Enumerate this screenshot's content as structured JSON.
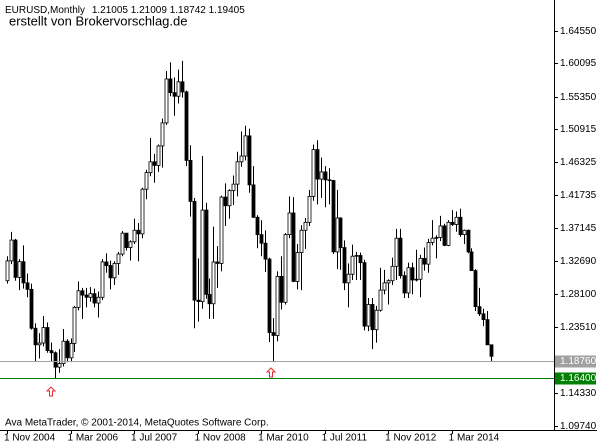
{
  "chart_data": {
    "type": "candlestick",
    "symbol": "EURUSD,Monthly",
    "watermark": "erstellt von Brokervorschlag.de",
    "copyright": "Ava MetaTrader, © 2001-2014, MetaQuotes Software Corp.",
    "categories": [
      "1 Nov 2004",
      null,
      null,
      null,
      null,
      null,
      null,
      null,
      null,
      null,
      null,
      null,
      null,
      null,
      null,
      null,
      "1 Mar 2006",
      null,
      null,
      null,
      null,
      null,
      null,
      null,
      null,
      null,
      null,
      null,
      null,
      null,
      null,
      null,
      "1 Jul 2007",
      null,
      null,
      null,
      null,
      null,
      null,
      null,
      null,
      null,
      null,
      null,
      null,
      null,
      null,
      null,
      "1 Nov 2008",
      null,
      null,
      null,
      null,
      null,
      null,
      null,
      null,
      null,
      null,
      null,
      null,
      null,
      null,
      null,
      "1 Mar 2010",
      null,
      null,
      null,
      null,
      null,
      null,
      null,
      null,
      null,
      null,
      null,
      null,
      null,
      null,
      null,
      "1 Jul 2011",
      null,
      null,
      null,
      null,
      null,
      null,
      null,
      null,
      null,
      null,
      null,
      null,
      null,
      null,
      null,
      "1 Nov 2012",
      null,
      null,
      null,
      null,
      null,
      null,
      null,
      null,
      null,
      null,
      null,
      null,
      null,
      null,
      null,
      "1 Mar 2014",
      null,
      null,
      null,
      null,
      null,
      null,
      null,
      null,
      null,
      null
    ],
    "open": [
      1.299,
      1.3265,
      1.3554,
      1.3036,
      1.3254,
      1.296,
      1.287,
      1.233,
      1.21,
      1.2125,
      1.234,
      1.202,
      1.199,
      1.179,
      1.184,
      1.215,
      1.192,
      1.212,
      1.262,
      1.285,
      1.279,
      1.276,
      1.281,
      1.268,
      1.276,
      1.325,
      1.32,
      1.303,
      1.323,
      1.336,
      1.365,
      1.345,
      1.353,
      1.369,
      1.364,
      1.426,
      1.449,
      1.464,
      1.459,
      1.486,
      1.518,
      1.579,
      1.56,
      1.555,
      1.575,
      1.561,
      1.466,
      1.409,
      1.272,
      1.27,
      1.397,
      1.28,
      1.267,
      1.325,
      1.323,
      1.415,
      1.403,
      1.424,
      1.433,
      1.464,
      1.472,
      1.5,
      1.432,
      1.387,
      1.363,
      1.351,
      1.329,
      1.227,
      1.223,
      1.305,
      1.269,
      1.363,
      1.393,
      1.298,
      1.338,
      1.369,
      1.38,
      1.416,
      1.481,
      1.44,
      1.45,
      1.439,
      1.438,
      1.339,
      1.386,
      1.345,
      1.296,
      1.308,
      1.333,
      1.334,
      1.324,
      1.236,
      1.266,
      1.231,
      1.258,
      1.286,
      1.296,
      1.299,
      1.319,
      1.358,
      1.306,
      1.282,
      1.317,
      1.3,
      1.301,
      1.33,
      1.322,
      1.352,
      1.358,
      1.359,
      1.375,
      1.348,
      1.38,
      1.377,
      1.387,
      1.363,
      1.369,
      1.339,
      1.313,
      1.263,
      1.253,
      1.245,
      1.21005
    ],
    "high": [
      1.333,
      1.3667,
      1.357,
      1.329,
      1.348,
      1.309,
      1.295,
      1.24,
      1.226,
      1.25,
      1.241,
      1.213,
      1.201,
      1.204,
      1.232,
      1.218,
      1.219,
      1.264,
      1.298,
      1.289,
      1.289,
      1.29,
      1.288,
      1.284,
      1.329,
      1.337,
      1.327,
      1.326,
      1.339,
      1.368,
      1.365,
      1.355,
      1.385,
      1.379,
      1.428,
      1.453,
      1.497,
      1.475,
      1.488,
      1.524,
      1.59,
      1.602,
      1.581,
      1.592,
      1.604,
      1.563,
      1.487,
      1.414,
      1.33,
      1.472,
      1.407,
      1.302,
      1.374,
      1.347,
      1.417,
      1.434,
      1.426,
      1.445,
      1.478,
      1.506,
      1.514,
      1.51,
      1.458,
      1.39,
      1.383,
      1.369,
      1.331,
      1.247,
      1.312,
      1.333,
      1.365,
      1.416,
      1.415,
      1.35,
      1.376,
      1.386,
      1.425,
      1.488,
      1.494,
      1.47,
      1.458,
      1.455,
      1.439,
      1.425,
      1.387,
      1.355,
      1.323,
      1.349,
      1.339,
      1.338,
      1.328,
      1.275,
      1.275,
      1.264,
      1.317,
      1.314,
      1.301,
      1.331,
      1.371,
      1.371,
      1.312,
      1.324,
      1.324,
      1.342,
      1.335,
      1.345,
      1.357,
      1.383,
      1.362,
      1.389,
      1.378,
      1.383,
      1.397,
      1.395,
      1.399,
      1.37,
      1.37,
      1.344,
      1.315,
      1.289,
      1.26,
      1.257,
      1.21009
    ],
    "low": [
      1.295,
      1.322,
      1.299,
      1.286,
      1.288,
      1.276,
      1.231,
      1.187,
      1.191,
      1.208,
      1.199,
      1.187,
      1.164,
      1.171,
      1.18,
      1.186,
      1.186,
      1.2,
      1.258,
      1.246,
      1.262,
      1.27,
      1.262,
      1.248,
      1.272,
      1.31,
      1.287,
      1.293,
      1.307,
      1.333,
      1.341,
      1.327,
      1.35,
      1.326,
      1.358,
      1.412,
      1.444,
      1.435,
      1.45,
      1.456,
      1.515,
      1.555,
      1.528,
      1.545,
      1.553,
      1.458,
      1.388,
      1.233,
      1.242,
      1.26,
      1.274,
      1.246,
      1.246,
      1.289,
      1.312,
      1.375,
      1.385,
      1.404,
      1.416,
      1.457,
      1.466,
      1.421,
      1.386,
      1.344,
      1.333,
      1.311,
      1.214,
      1.1876,
      1.215,
      1.259,
      1.266,
      1.358,
      1.297,
      1.287,
      1.286,
      1.343,
      1.375,
      1.41,
      1.405,
      1.414,
      1.401,
      1.405,
      1.336,
      1.315,
      1.314,
      1.286,
      1.262,
      1.3,
      1.3,
      1.3,
      1.23,
      1.229,
      1.204,
      1.213,
      1.256,
      1.28,
      1.266,
      1.293,
      1.3,
      1.302,
      1.275,
      1.275,
      1.28,
      1.298,
      1.276,
      1.313,
      1.31,
      1.348,
      1.33,
      1.354,
      1.347,
      1.347,
      1.375,
      1.367,
      1.36,
      1.35,
      1.337,
      1.313,
      1.257,
      1.25,
      1.236,
      1.21,
      1.18742
    ],
    "close": [
      1.3265,
      1.3554,
      1.3036,
      1.3254,
      1.296,
      1.287,
      1.233,
      1.21,
      1.2125,
      1.234,
      1.202,
      1.199,
      1.179,
      1.184,
      1.215,
      1.192,
      1.212,
      1.262,
      1.285,
      1.279,
      1.276,
      1.281,
      1.268,
      1.276,
      1.325,
      1.32,
      1.303,
      1.323,
      1.336,
      1.365,
      1.345,
      1.353,
      1.369,
      1.364,
      1.426,
      1.449,
      1.464,
      1.459,
      1.486,
      1.518,
      1.579,
      1.56,
      1.555,
      1.575,
      1.561,
      1.466,
      1.409,
      1.272,
      1.27,
      1.397,
      1.28,
      1.267,
      1.325,
      1.323,
      1.415,
      1.403,
      1.424,
      1.433,
      1.464,
      1.472,
      1.5,
      1.432,
      1.387,
      1.363,
      1.351,
      1.329,
      1.227,
      1.223,
      1.305,
      1.269,
      1.363,
      1.393,
      1.298,
      1.338,
      1.369,
      1.38,
      1.416,
      1.481,
      1.44,
      1.45,
      1.439,
      1.438,
      1.339,
      1.386,
      1.345,
      1.296,
      1.308,
      1.333,
      1.334,
      1.324,
      1.236,
      1.266,
      1.231,
      1.258,
      1.286,
      1.296,
      1.299,
      1.319,
      1.358,
      1.306,
      1.282,
      1.317,
      1.3,
      1.301,
      1.33,
      1.322,
      1.352,
      1.358,
      1.359,
      1.375,
      1.348,
      1.38,
      1.377,
      1.387,
      1.363,
      1.369,
      1.339,
      1.313,
      1.263,
      1.253,
      1.245,
      1.21,
      1.19405
    ],
    "ylim": [
      1.0918,
      1.6844
    ],
    "yticks": [
      {
        "value": 1.6455,
        "label": "1.64550"
      },
      1.60095,
      {
        "value": 1.5535,
        "label": "1.55350"
      },
      1.50915,
      1.46325,
      1.41735,
      1.37145,
      {
        "value": 1.3269,
        "label": "1.32690"
      },
      {
        "value": 1.281,
        "label": "1.28100"
      },
      {
        "value": 1.2351,
        "label": "1.23510"
      },
      {
        "value": 1.1433,
        "label": "1.14330"
      },
      {
        "value": 1.0974,
        "label": "1.09740"
      }
    ],
    "levels": [
      {
        "value": 1.1876,
        "label": "1.18760",
        "color": "#a0a0a0"
      },
      {
        "value": 1.164,
        "label": "1.16400",
        "color": "#008000"
      }
    ],
    "bull_color": "#ffffff",
    "bear_color": "#000000",
    "wick_color": "#000000"
  }
}
